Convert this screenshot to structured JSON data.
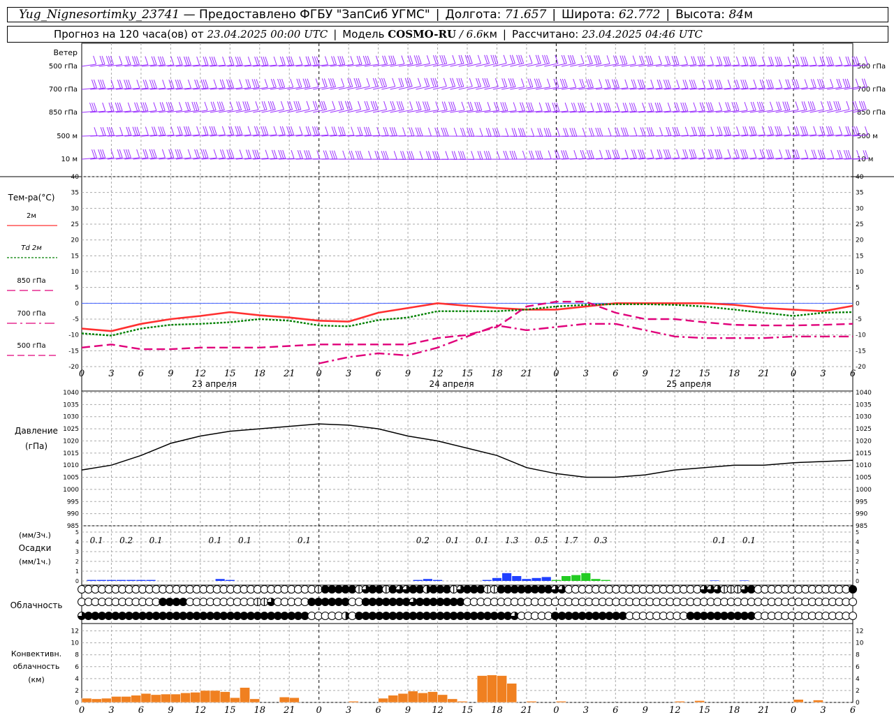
{
  "header": {
    "station": "Yug_Nignesortimky_23741",
    "provider": "— Предоставлено ФГБУ \"ЗапСиб УГМС\"",
    "lon_label": "Долгота:",
    "lon": "71.657",
    "lat_label": "Широта:",
    "lat": "62.772",
    "alt_label": "Высота:",
    "alt": "84",
    "alt_unit": "м",
    "fc_label": "Прогноз на 120 часа(ов)  от",
    "fc_start": "23.04.2025 00:00 UTC",
    "model_label": "Модель",
    "model": "COSMO-RU",
    "model_res": "/ 6.6",
    "model_res_unit": "км",
    "calc_label": "Рассчитано:",
    "calc_time": "23.04.2025 04:46 UTC"
  },
  "time_axis": {
    "hour_labels": [
      "0",
      "3",
      "6",
      "9",
      "12",
      "15",
      "18",
      "21",
      "0",
      "3",
      "6",
      "9",
      "12",
      "15",
      "18",
      "21",
      "0",
      "3",
      "6",
      "9",
      "12",
      "15",
      "18",
      "21",
      "0",
      "3",
      "6"
    ],
    "day_labels": [
      "23 апреля",
      "24 апреля",
      "25 апреля"
    ]
  },
  "chart_data": [
    {
      "type": "wind-barbs",
      "panel_label": "Ветер",
      "levels": [
        "500 гПа",
        "700 гПа",
        "850 гПа",
        "500 м",
        "10  м"
      ],
      "color": "#9b30ff"
    },
    {
      "type": "line",
      "panel_label": "Тем-ра(°C)",
      "x_hours": [
        0,
        3,
        6,
        9,
        12,
        15,
        18,
        21,
        24,
        27,
        30,
        33,
        36,
        39,
        42,
        45,
        48,
        51,
        54,
        57,
        60,
        63,
        66,
        69,
        72,
        75,
        78
      ],
      "ylim": [
        -20,
        40
      ],
      "yticks": [
        "40",
        "35",
        "30",
        "25",
        "20",
        "15",
        "10",
        "5",
        "0",
        "-5",
        "-10",
        "-15",
        "-20"
      ],
      "series": [
        {
          "name": "2м",
          "color": "#ff3030",
          "style": "solid",
          "values": [
            -8,
            -8.8,
            -6.5,
            -5,
            -4,
            -2.8,
            -3.8,
            -4.5,
            -5.5,
            -5.8,
            -3,
            -1.5,
            0,
            -0.8,
            -1.5,
            -2,
            -2,
            -1,
            0,
            0,
            0,
            0,
            -0.5,
            -1.5,
            -2,
            -2.5,
            -0.8
          ]
        },
        {
          "name": "Td 2м",
          "color": "#008000",
          "style": "dotted",
          "values": [
            -9.5,
            -10.2,
            -8,
            -6.8,
            -6.5,
            -6,
            -5,
            -5.5,
            -7,
            -7.3,
            -5.3,
            -4.5,
            -2.5,
            -2.5,
            -2.5,
            -2,
            -1,
            -0.5,
            -0.3,
            -0.3,
            -0.5,
            -1,
            -2,
            -3,
            -4,
            -3,
            -2.8
          ]
        },
        {
          "name": "850 гПа",
          "color": "#e0007a",
          "style": "dash",
          "values": [
            -14,
            -13,
            -14.5,
            -14.5,
            -14,
            -14,
            -14,
            -13.5,
            -13,
            -13,
            -13,
            -13,
            -11,
            -10,
            -7.5,
            -1,
            0.5,
            0.5,
            -3,
            -5,
            -5,
            -6,
            -6.8,
            -7,
            -7,
            -6.8,
            -6.5
          ]
        },
        {
          "name": "700 гПа",
          "color": "#e0007a",
          "style": "dashdot",
          "values": [
            null,
            null,
            null,
            null,
            null,
            null,
            null,
            null,
            -19,
            -17,
            -15.8,
            -16.5,
            -14,
            -10.5,
            -7,
            -8.5,
            -7.5,
            -6.5,
            -6.5,
            -8.5,
            -10.5,
            -11,
            -11,
            -11,
            -10.5,
            -10.5,
            -10.5
          ]
        },
        {
          "name": "500 гПа",
          "color": "#e0007a",
          "style": "longdash",
          "values": []
        }
      ]
    },
    {
      "type": "line",
      "panel_label": "Давление",
      "panel_unit": "(гПа)",
      "x_hours": [
        0,
        3,
        6,
        9,
        12,
        15,
        18,
        21,
        24,
        27,
        30,
        33,
        36,
        39,
        42,
        45,
        48,
        51,
        54,
        57,
        60,
        63,
        66,
        69,
        72,
        75,
        78
      ],
      "ylim": [
        985,
        1040
      ],
      "yticks": [
        "1040",
        "1035",
        "1030",
        "1025",
        "1020",
        "1015",
        "1010",
        "1005",
        "1000",
        "995",
        "990",
        "985"
      ],
      "series": [
        {
          "name": "Давление",
          "color": "#000000",
          "values": [
            1008,
            1010,
            1014,
            1019,
            1022,
            1024,
            1025,
            1026,
            1027,
            1026.5,
            1025,
            1022,
            1020,
            1017,
            1014,
            1009,
            1006.5,
            1005,
            1005,
            1006,
            1008,
            1009,
            1010,
            1010,
            1011,
            1011.5,
            1012
          ]
        }
      ]
    },
    {
      "type": "bar",
      "panel_label": "Осадки",
      "units": [
        "(мм/3ч.)",
        "(мм/1ч.)"
      ],
      "ylim": [
        0,
        5
      ],
      "yticks": [
        "5",
        "4",
        "3",
        "2",
        "1",
        "0"
      ],
      "sum_labels": [
        {
          "hour": 1.5,
          "text": "0.1"
        },
        {
          "hour": 4.5,
          "text": "0.2"
        },
        {
          "hour": 7.5,
          "text": "0.1"
        },
        {
          "hour": 13.5,
          "text": "0.1"
        },
        {
          "hour": 16.5,
          "text": "0.1"
        },
        {
          "hour": 22.5,
          "text": "0.1"
        },
        {
          "hour": 34.5,
          "text": "0.2"
        },
        {
          "hour": 37.5,
          "text": "0.1"
        },
        {
          "hour": 40.5,
          "text": "0.1"
        },
        {
          "hour": 43.5,
          "text": "1.3"
        },
        {
          "hour": 46.5,
          "text": "0.5"
        },
        {
          "hour": 49.5,
          "text": "1.7"
        },
        {
          "hour": 52.5,
          "text": "0.3"
        },
        {
          "hour": 64.5,
          "text": "0.1"
        },
        {
          "hour": 67.5,
          "text": "0.1"
        }
      ],
      "bars": [
        {
          "hour": 1,
          "value": 0.1,
          "color": "#2040ff"
        },
        {
          "hour": 2,
          "value": 0.1,
          "color": "#2040ff"
        },
        {
          "hour": 3,
          "value": 0.1,
          "color": "#2040ff"
        },
        {
          "hour": 4,
          "value": 0.1,
          "color": "#2040ff"
        },
        {
          "hour": 5,
          "value": 0.1,
          "color": "#2040ff"
        },
        {
          "hour": 6,
          "value": 0.1,
          "color": "#2040ff"
        },
        {
          "hour": 7,
          "value": 0.1,
          "color": "#2040ff"
        },
        {
          "hour": 14,
          "value": 0.2,
          "color": "#2040ff"
        },
        {
          "hour": 15,
          "value": 0.1,
          "color": "#2040ff"
        },
        {
          "hour": 34,
          "value": 0.1,
          "color": "#2040ff"
        },
        {
          "hour": 35,
          "value": 0.2,
          "color": "#2040ff"
        },
        {
          "hour": 36,
          "value": 0.1,
          "color": "#2040ff"
        },
        {
          "hour": 41,
          "value": 0.1,
          "color": "#2040ff"
        },
        {
          "hour": 42,
          "value": 0.3,
          "color": "#2040ff"
        },
        {
          "hour": 43,
          "value": 0.8,
          "color": "#2040ff"
        },
        {
          "hour": 44,
          "value": 0.5,
          "color": "#2040ff"
        },
        {
          "hour": 45,
          "value": 0.2,
          "color": "#2040ff"
        },
        {
          "hour": 46,
          "value": 0.3,
          "color": "#2040ff"
        },
        {
          "hour": 47,
          "value": 0.4,
          "color": "#2040ff"
        },
        {
          "hour": 48,
          "value": 0.1,
          "color": "#22cc22"
        },
        {
          "hour": 49,
          "value": 0.5,
          "color": "#22cc22"
        },
        {
          "hour": 50,
          "value": 0.6,
          "color": "#22cc22"
        },
        {
          "hour": 51,
          "value": 0.8,
          "color": "#22cc22"
        },
        {
          "hour": 52,
          "value": 0.2,
          "color": "#22cc22"
        },
        {
          "hour": 53,
          "value": 0.1,
          "color": "#22cc22"
        },
        {
          "hour": 64,
          "value": 0.05,
          "color": "#2040ff"
        },
        {
          "hour": 67,
          "value": 0.05,
          "color": "#2040ff"
        }
      ]
    },
    {
      "type": "cloud-symbols",
      "panel_label": "Облачность",
      "legend": "0=clear,1..3=partial,4=overcast",
      "rows": [
        "0000000000000000000000000000000000014444413441433442444134441144444444330000000000000000000033311134000000000000004",
        "0000000000004444000000000011300000444444004444444344444440000000000000000000000000000000000000000000000000000000000",
        "3444444444444444444444444444444444000002044444444444444444444444300000444444444440000000004444444444000000000000000"
      ]
    },
    {
      "type": "bar",
      "panel_label": "Конвективн. облачность",
      "panel_unit": "(км)",
      "ylim": [
        0,
        13
      ],
      "yticks": [
        "12",
        "10",
        "8",
        "6",
        "4",
        "2",
        "0"
      ],
      "color": "#f08020",
      "bars": [
        {
          "hour": 0.5,
          "value": 0.7
        },
        {
          "hour": 1.5,
          "value": 0.6
        },
        {
          "hour": 2.5,
          "value": 0.7
        },
        {
          "hour": 3.5,
          "value": 1
        },
        {
          "hour": 4.5,
          "value": 1
        },
        {
          "hour": 5.5,
          "value": 1.2
        },
        {
          "hour": 6.5,
          "value": 1.5
        },
        {
          "hour": 7.5,
          "value": 1.3
        },
        {
          "hour": 8.5,
          "value": 1.4
        },
        {
          "hour": 9.5,
          "value": 1.4
        },
        {
          "hour": 10.5,
          "value": 1.6
        },
        {
          "hour": 11.5,
          "value": 1.7
        },
        {
          "hour": 12.5,
          "value": 2
        },
        {
          "hour": 13.5,
          "value": 2
        },
        {
          "hour": 14.5,
          "value": 1.8
        },
        {
          "hour": 15.5,
          "value": 0.8
        },
        {
          "hour": 16.5,
          "value": 2.5
        },
        {
          "hour": 17.5,
          "value": 0.6
        },
        {
          "hour": 20.5,
          "value": 0.9
        },
        {
          "hour": 21.5,
          "value": 0.8
        },
        {
          "hour": 27.5,
          "value": 0.2
        },
        {
          "hour": 30.5,
          "value": 0.7
        },
        {
          "hour": 31.5,
          "value": 1.2
        },
        {
          "hour": 32.5,
          "value": 1.5
        },
        {
          "hour": 33.5,
          "value": 1.9
        },
        {
          "hour": 34.5,
          "value": 1.6
        },
        {
          "hour": 35.5,
          "value": 1.8
        },
        {
          "hour": 36.5,
          "value": 1.3
        },
        {
          "hour": 37.5,
          "value": 0.6
        },
        {
          "hour": 38.5,
          "value": 0.2
        },
        {
          "hour": 40.5,
          "value": 4.5
        },
        {
          "hour": 41.5,
          "value": 4.6
        },
        {
          "hour": 42.5,
          "value": 4.5
        },
        {
          "hour": 43.5,
          "value": 3.2
        },
        {
          "hour": 45.5,
          "value": 0.2
        },
        {
          "hour": 48.5,
          "value": 0.2
        },
        {
          "hour": 60.5,
          "value": 0.2
        },
        {
          "hour": 62.5,
          "value": 0.3
        },
        {
          "hour": 72.5,
          "value": 0.5
        },
        {
          "hour": 74.5,
          "value": 0.4
        }
      ]
    }
  ]
}
